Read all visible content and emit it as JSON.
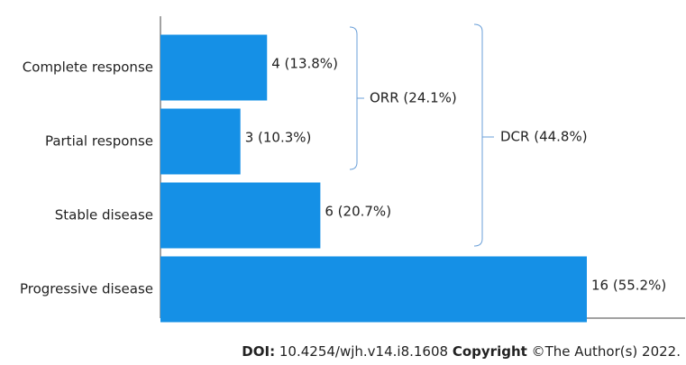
{
  "chart_data": {
    "type": "hbar",
    "categories": [
      "Complete response",
      "Partial response",
      "Stable disease",
      "Progressive disease"
    ],
    "values": [
      4,
      3,
      6,
      16
    ],
    "value_labels": [
      "4 (13.8%)",
      "3 (10.3%)",
      "6 (20.7%)",
      "16 (55.2%)"
    ],
    "color": "#1590e6",
    "annotations": [
      {
        "text": "ORR (24.1%)"
      },
      {
        "text": "DCR (44.8%)"
      }
    ]
  },
  "footer": {
    "doi_label": "DOI:",
    "doi": "10.4254/wjh.v14.i8.1608",
    "copyright_label": "Copyright",
    "copyright": "©The Author(s) 2022."
  }
}
